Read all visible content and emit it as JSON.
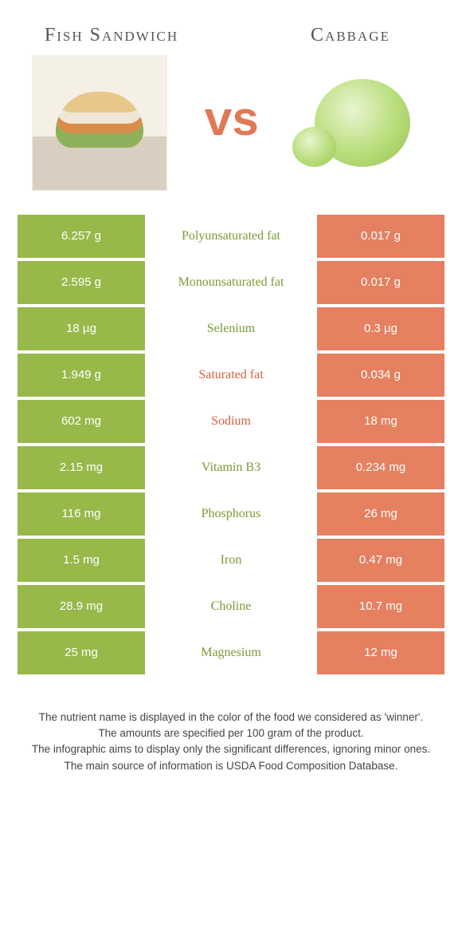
{
  "left": {
    "title": "Fish Sandwich",
    "color": "#96b94a"
  },
  "right": {
    "title": "Cabbage",
    "color": "#e58060"
  },
  "vs": "vs",
  "nutrients": [
    {
      "name": "Polyunsaturated fat",
      "left": "6.257 g",
      "right": "0.017 g",
      "winner": "left"
    },
    {
      "name": "Monounsaturated fat",
      "left": "2.595 g",
      "right": "0.017 g",
      "winner": "left"
    },
    {
      "name": "Selenium",
      "left": "18 µg",
      "right": "0.3 µg",
      "winner": "left"
    },
    {
      "name": "Saturated fat",
      "left": "1.949 g",
      "right": "0.034 g",
      "winner": "right"
    },
    {
      "name": "Sodium",
      "left": "602 mg",
      "right": "18 mg",
      "winner": "right"
    },
    {
      "name": "Vitamin B3",
      "left": "2.15 mg",
      "right": "0.234 mg",
      "winner": "left"
    },
    {
      "name": "Phosphorus",
      "left": "116 mg",
      "right": "26 mg",
      "winner": "left"
    },
    {
      "name": "Iron",
      "left": "1.5 mg",
      "right": "0.47 mg",
      "winner": "left"
    },
    {
      "name": "Choline",
      "left": "28.9 mg",
      "right": "10.7 mg",
      "winner": "left"
    },
    {
      "name": "Magnesium",
      "left": "25 mg",
      "right": "12 mg",
      "winner": "left"
    }
  ],
  "footer": {
    "l1": "The nutrient name is displayed in the color of the food we considered as 'winner'.",
    "l2": "The amounts are specified per 100 gram of the product.",
    "l3": "The infographic aims to display only the significant differences, ignoring minor ones.",
    "l4": "The main source of information is USDA Food Composition Database."
  },
  "colors": {
    "leftWin": "#7a9a34",
    "rightWin": "#d4603d"
  }
}
